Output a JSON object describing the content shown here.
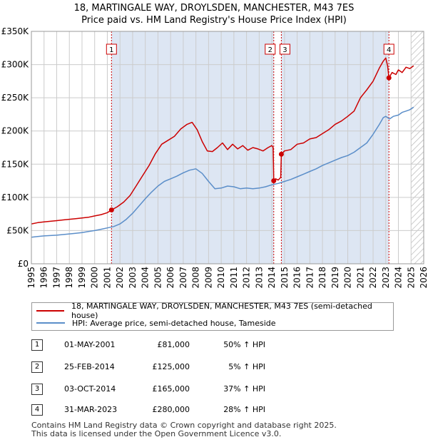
{
  "title_line1": "18, MARTINGALE WAY, DROYLSDEN, MANCHESTER, M43 7ES",
  "title_line2": "Price paid vs. HM Land Registry's House Price Index (HPI)",
  "colors": {
    "property": "#cc0000",
    "hpi": "#5b8ec9",
    "shade": "#dde6f3",
    "grid": "#cccccc"
  },
  "legend": {
    "property": "18, MARTINGALE WAY, DROYLSDEN, MANCHESTER, M43 7ES (semi-detached house)",
    "hpi": "HPI: Average price, semi-detached house, Tameside"
  },
  "sales": [
    {
      "num": "1",
      "date": "01-MAY-2001",
      "price": "£81,000",
      "hpi": "50% ↑ HPI",
      "year": 2001.33,
      "value": 81000
    },
    {
      "num": "2",
      "date": "25-FEB-2014",
      "price": "£125,000",
      "hpi": "5% ↑ HPI",
      "year": 2014.15,
      "value": 125000
    },
    {
      "num": "3",
      "date": "03-OCT-2014",
      "price": "£165,000",
      "hpi": "37% ↑ HPI",
      "year": 2014.75,
      "value": 165000
    },
    {
      "num": "4",
      "date": "31-MAR-2023",
      "price": "£280,000",
      "hpi": "28% ↑ HPI",
      "year": 2023.25,
      "value": 280000
    }
  ],
  "footer_line1": "Contains HM Land Registry data © Crown copyright and database right 2025.",
  "footer_line2": "This data is licensed under the Open Government Licence v3.0.",
  "chart_data": {
    "type": "line",
    "title": "18, MARTINGALE WAY, DROYLSDEN, MANCHESTER, M43 7ES",
    "subtitle": "Price paid vs. HM Land Registry's House Price Index (HPI)",
    "xlabel": "",
    "ylabel": "",
    "xlim": [
      1995,
      2026
    ],
    "ylim": [
      0,
      350000
    ],
    "x_ticks": [
      1995,
      1996,
      1997,
      1998,
      1999,
      2000,
      2001,
      2002,
      2003,
      2004,
      2005,
      2006,
      2007,
      2008,
      2009,
      2010,
      2011,
      2012,
      2013,
      2014,
      2015,
      2016,
      2017,
      2018,
      2019,
      2020,
      2021,
      2022,
      2023,
      2024,
      2025,
      2026
    ],
    "y_ticks": [
      0,
      50000,
      100000,
      150000,
      200000,
      250000,
      300000,
      350000
    ],
    "y_tick_labels": [
      "£0",
      "£50K",
      "£100K",
      "£150K",
      "£200K",
      "£250K",
      "£300K",
      "£350K"
    ],
    "shaded_ranges": [
      [
        2001.33,
        2014.15
      ],
      [
        2014.75,
        2023.25
      ]
    ],
    "hatched_range": [
      2025.0,
      2026.0
    ],
    "grid": true,
    "legend_position": "below",
    "series": [
      {
        "name": "18, MARTINGALE WAY, DROYLSDEN, MANCHESTER, M43 7ES (semi-detached house)",
        "x": [
          1995.0,
          1995.5,
          1996.0,
          1996.5,
          1997.0,
          1997.5,
          1998.0,
          1998.5,
          1999.0,
          1999.5,
          2000.0,
          2000.5,
          2001.0,
          2001.33,
          2001.8,
          2002.3,
          2002.8,
          2003.3,
          2003.8,
          2004.3,
          2004.8,
          2005.3,
          2005.8,
          2006.3,
          2006.8,
          2007.3,
          2007.7,
          2008.1,
          2008.5,
          2008.9,
          2009.3,
          2009.7,
          2010.1,
          2010.5,
          2010.9,
          2011.3,
          2011.7,
          2012.1,
          2012.5,
          2012.9,
          2013.3,
          2013.7,
          2014.0,
          2014.1,
          2014.15,
          2014.3,
          2014.5,
          2014.7,
          2014.75,
          2015.0,
          2015.5,
          2016.0,
          2016.5,
          2017.0,
          2017.5,
          2018.0,
          2018.5,
          2019.0,
          2019.5,
          2020.0,
          2020.5,
          2021.0,
          2021.5,
          2022.0,
          2022.5,
          2022.8,
          2023.0,
          2023.15,
          2023.25,
          2023.5,
          2023.8,
          2024.0,
          2024.3,
          2024.6,
          2024.9,
          2025.2
        ],
        "values": [
          60000,
          62000,
          63000,
          64000,
          65000,
          66000,
          67000,
          68000,
          69000,
          70000,
          72000,
          74000,
          77000,
          81000,
          86000,
          93000,
          103000,
          118000,
          133000,
          148000,
          166000,
          180000,
          186000,
          192000,
          203000,
          210000,
          213000,
          202000,
          184000,
          170000,
          169000,
          175000,
          182000,
          172000,
          180000,
          173000,
          178000,
          171000,
          175000,
          173000,
          170000,
          175000,
          178000,
          175000,
          125000,
          128000,
          126000,
          130000,
          165000,
          170000,
          172000,
          180000,
          182000,
          188000,
          190000,
          196000,
          202000,
          210000,
          215000,
          222000,
          230000,
          250000,
          262000,
          275000,
          295000,
          305000,
          310000,
          298000,
          280000,
          288000,
          285000,
          292000,
          288000,
          296000,
          294000,
          298000
        ]
      },
      {
        "name": "HPI: Average price, semi-detached house, Tameside",
        "x": [
          1995.0,
          1995.5,
          1996.0,
          1996.5,
          1997.0,
          1997.5,
          1998.0,
          1998.5,
          1999.0,
          1999.5,
          2000.0,
          2000.5,
          2001.0,
          2001.5,
          2002.0,
          2002.5,
          2003.0,
          2003.5,
          2004.0,
          2004.5,
          2005.0,
          2005.5,
          2006.0,
          2006.5,
          2007.0,
          2007.5,
          2008.0,
          2008.5,
          2009.0,
          2009.5,
          2010.0,
          2010.5,
          2011.0,
          2011.5,
          2012.0,
          2012.5,
          2013.0,
          2013.5,
          2014.0,
          2014.5,
          2015.0,
          2015.5,
          2016.0,
          2016.5,
          2017.0,
          2017.5,
          2018.0,
          2018.5,
          2019.0,
          2019.5,
          2020.0,
          2020.5,
          2021.0,
          2021.5,
          2022.0,
          2022.5,
          2022.8,
          2023.0,
          2023.3,
          2023.6,
          2024.0,
          2024.3,
          2024.6,
          2024.9,
          2025.2
        ],
        "values": [
          40000,
          41000,
          42000,
          42500,
          43000,
          44000,
          45000,
          46000,
          47000,
          48500,
          50000,
          52000,
          54000,
          56000,
          60000,
          67000,
          76000,
          87000,
          98000,
          108000,
          117000,
          124000,
          128000,
          132000,
          137000,
          141000,
          143000,
          136000,
          124000,
          113000,
          114000,
          117000,
          116000,
          113000,
          114000,
          113000,
          114000,
          116000,
          119000,
          121000,
          124000,
          127000,
          131000,
          135000,
          139000,
          143000,
          148000,
          152000,
          156000,
          160000,
          163000,
          168000,
          175000,
          182000,
          195000,
          210000,
          220000,
          222000,
          218000,
          222000,
          224000,
          228000,
          230000,
          232000,
          236000
        ]
      }
    ],
    "annotations": [
      {
        "label": "1",
        "x": 2001.33,
        "y": 81000
      },
      {
        "label": "2",
        "x": 2014.15,
        "y": 125000
      },
      {
        "label": "3",
        "x": 2014.75,
        "y": 165000
      },
      {
        "label": "4",
        "x": 2023.25,
        "y": 280000
      }
    ]
  }
}
